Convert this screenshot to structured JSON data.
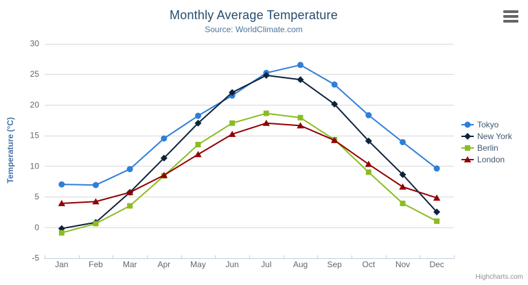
{
  "chart": {
    "credits": "Highcharts.com",
    "colors": {
      "background": "#ffffff",
      "title": "#274b6d",
      "subtitle": "#4d759e",
      "y_axis_title": "#4572a7",
      "axis_labels": "#666666",
      "gridline": "#d8d8d8",
      "axis_line": "#c0d0e0",
      "legend_text": "#3e576f",
      "credits": "#909090",
      "menu_icon": "#666666"
    }
  },
  "chart_data": {
    "type": "line",
    "title": "Monthly Average Temperature",
    "subtitle": "Source: WorldClimate.com",
    "xlabel": "",
    "ylabel": "Temperature (°C)",
    "ylim": [
      -5,
      30
    ],
    "ytick_step": 5,
    "yticks": [
      -5,
      0,
      5,
      10,
      15,
      20,
      25,
      30
    ],
    "grid": true,
    "legend_position": "right",
    "categories": [
      "Jan",
      "Feb",
      "Mar",
      "Apr",
      "May",
      "Jun",
      "Jul",
      "Aug",
      "Sep",
      "Oct",
      "Nov",
      "Dec"
    ],
    "series": [
      {
        "name": "Tokyo",
        "color": "#2f7ed8",
        "marker": "circle",
        "values": [
          7.0,
          6.9,
          9.5,
          14.5,
          18.2,
          21.5,
          25.2,
          26.5,
          23.3,
          18.3,
          13.9,
          9.6
        ]
      },
      {
        "name": "New York",
        "color": "#0d233a",
        "marker": "diamond",
        "values": [
          -0.2,
          0.8,
          5.7,
          11.3,
          17.0,
          22.0,
          24.8,
          24.1,
          20.1,
          14.1,
          8.6,
          2.5
        ]
      },
      {
        "name": "Berlin",
        "color": "#8bbc21",
        "marker": "square",
        "values": [
          -0.9,
          0.6,
          3.5,
          8.4,
          13.5,
          17.0,
          18.6,
          17.9,
          14.3,
          9.0,
          3.9,
          1.0
        ]
      },
      {
        "name": "London",
        "color": "#910000",
        "marker": "triangle",
        "values": [
          3.9,
          4.2,
          5.7,
          8.5,
          11.9,
          15.2,
          17.0,
          16.6,
          14.2,
          10.3,
          6.6,
          4.8
        ]
      }
    ]
  }
}
